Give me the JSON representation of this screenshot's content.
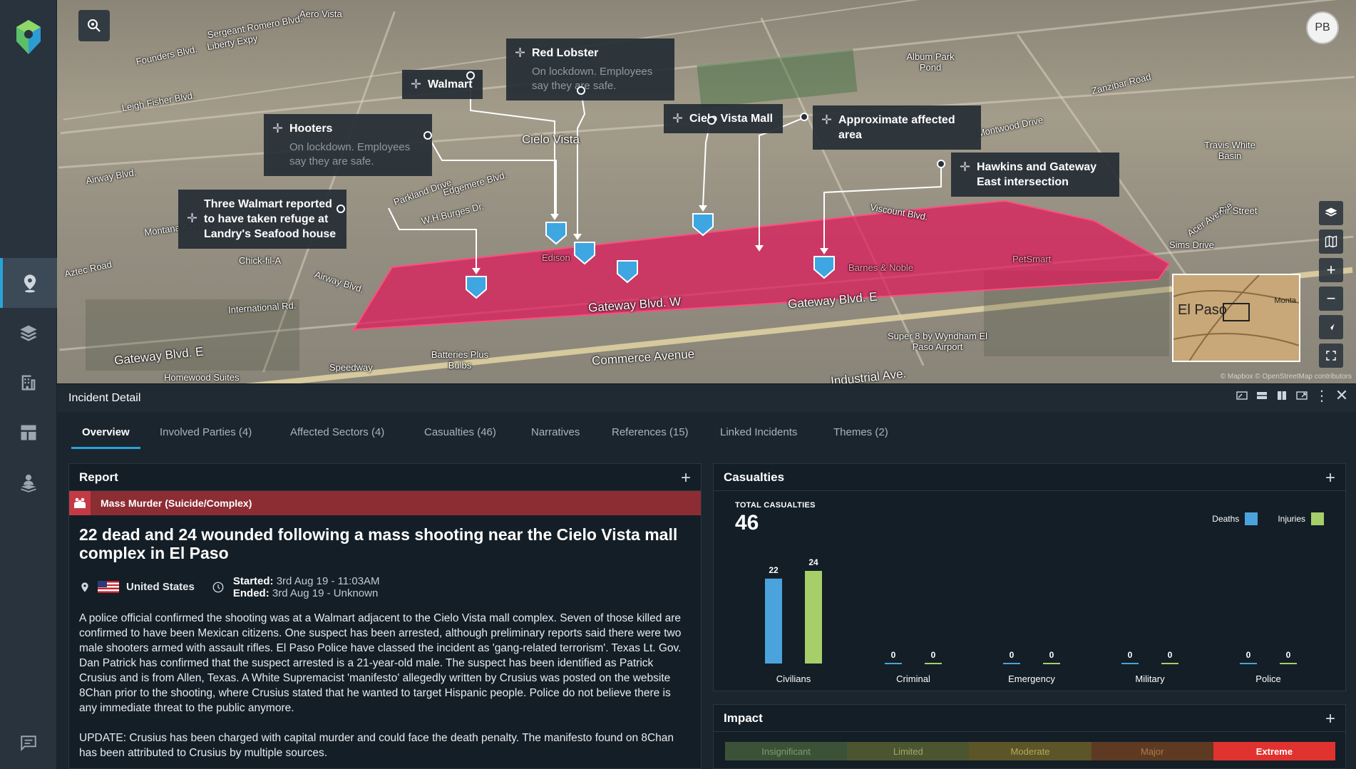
{
  "app": {
    "user_initials": "PB",
    "accent": "#2aa3d9"
  },
  "map": {
    "labels": {
      "aero_vista": "Aero Vista",
      "sergeant_romero": "Sergeant Romero Blvd.",
      "liberty_expy": "Liberty Expy",
      "founders": "Founders Blvd.",
      "leigh_fisher": "Leigh Fisher Blvd.",
      "airway_blvd_1": "Airway Blvd.",
      "montana": "Montana Avenue",
      "aztec": "Aztec Road",
      "airway_blvd_2": "Airway Blvd.",
      "international": "International Rd.",
      "gateway_e_left": "Gateway Blvd. E",
      "homewood": "Homewood Suites",
      "chickfila": "Chick-fil-A",
      "speedway": "Speedway",
      "batteries": "Batteries Plus Bulbs",
      "commerce": "Commerce Avenue",
      "gateway_w": "Gateway Blvd. W",
      "gateway_e": "Gateway Blvd. E",
      "super8": "Super 8 by Wyndham El Paso Airport",
      "industrial": "Industrial Ave.",
      "cielo_vista": "Cielo Vista",
      "viscount": "Viscount Blvd.",
      "edgemere": "Edgemere Blvd.",
      "wh_burges": "W.H.Burges Dr.",
      "parkland": "Parkland Drive",
      "album_park": "Album Park Pond",
      "sims": "Sims Drive",
      "travis": "Travis White Basin",
      "montwood": "Montwood Drive",
      "zanzibar": "Zanzibar Road",
      "acer": "Acer Avenue",
      "firestreet": "Fir Street",
      "petsmart": "PetSmart",
      "burges_noble": "Barnes & Noble",
      "edison": "Edison"
    },
    "callouts": {
      "walmart": {
        "title": "Walmart"
      },
      "red_lobster": {
        "title": "Red Lobster",
        "sub": "On lockdown. Employees say they are safe."
      },
      "hooters": {
        "title": "Hooters",
        "sub": "On lockdown. Employees say they are safe."
      },
      "cielo_mall": {
        "title": "Cielo Vista Mall"
      },
      "affected": {
        "title": "Approximate affected area"
      },
      "hawkins": {
        "title": "Hawkins and Gateway East intersection"
      },
      "three_walmart": {
        "title": "Three Walmart reported to have taken refuge at Landry's Seafood house"
      }
    },
    "minimap": {
      "city": "El Paso",
      "small": "Monta"
    },
    "attribution": "© Mapbox © OpenStreetMap contributors",
    "area_color": "#e0185a"
  },
  "rail": {
    "items": [
      {
        "name": "map-pin"
      },
      {
        "name": "layers"
      },
      {
        "name": "building"
      },
      {
        "name": "dashboard"
      },
      {
        "name": "person-pin"
      }
    ]
  },
  "panel": {
    "title": "Incident Detail",
    "tabs": [
      "Overview",
      "Involved Parties (4)",
      "Affected Sectors (4)",
      "Casualties (46)",
      "Narratives",
      "References (15)",
      "Linked Incidents",
      "Themes (2)"
    ]
  },
  "report": {
    "heading": "Report",
    "category": "Mass Murder (Suicide/Complex)",
    "category_color": "#8c2c33",
    "headline": "22 dead and 24 wounded following a mass shooting near the Cielo Vista mall complex in El Paso",
    "country": "United States",
    "started_label": "Started:",
    "started_value": "3rd Aug 19 - 11:03AM",
    "ended_label": "Ended:",
    "ended_value": "3rd Aug 19 - Unknown",
    "paragraph1": "A police official confirmed the shooting was at a Walmart adjacent to the Cielo Vista mall complex. Seven of those killed are confirmed to have been Mexican citizens. One suspect has been arrested, although preliminary reports said there were two male shooters armed with assault rifles. El Paso Police have classed the incident as 'gang-related terrorism'. Texas Lt. Gov. Dan Patrick has confirmed that the suspect arrested is a 21-year-old male. The suspect has been identified as Patrick Crusius and is from Allen, Texas. A White Supremacist 'manifesto' allegedly written by Crusius was posted on the website 8Chan prior to the shooting, where Crusius stated that he wanted to target Hispanic people. Police do not believe there is any immediate threat to the public anymore.",
    "paragraph2": "UPDATE: Crusius has been charged with capital murder and could face the death penalty. The manifesto found on 8Chan has been attributed to Crusius by multiple sources."
  },
  "casualties": {
    "heading": "Casualties",
    "total_label": "TOTAL CASUALTIES",
    "total": "46"
  },
  "chart_data": {
    "type": "bar",
    "categories": [
      "Civilians",
      "Criminal",
      "Emergency",
      "Military",
      "Police"
    ],
    "series": [
      {
        "name": "Deaths",
        "color": "#4aa3dc",
        "values": [
          22,
          0,
          0,
          0,
          0
        ]
      },
      {
        "name": "Injuries",
        "color": "#a6cf6a",
        "values": [
          24,
          0,
          0,
          0,
          0
        ]
      }
    ],
    "ylim": [
      0,
      24
    ],
    "legend": "top-right",
    "grid": false
  },
  "impact": {
    "heading": "Impact",
    "levels": [
      {
        "label": "Insignificant",
        "bg": "#3b5238",
        "fg": "#7e9b6a"
      },
      {
        "label": "Limited",
        "bg": "#4b5630",
        "fg": "#a0a86c"
      },
      {
        "label": "Moderate",
        "bg": "#5b5528",
        "fg": "#b8a860"
      },
      {
        "label": "Major",
        "bg": "#5e3a23",
        "fg": "#b07a4a"
      },
      {
        "label": "Extreme",
        "bg": "#e0322f",
        "fg": "#ffffff"
      }
    ],
    "selected": "Extreme"
  }
}
